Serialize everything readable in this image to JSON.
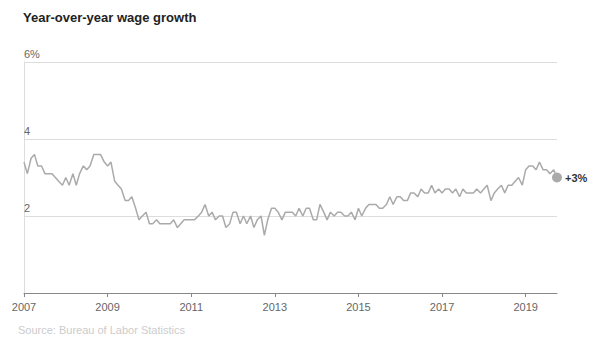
{
  "chart_data": {
    "type": "line",
    "title": "Year-over-year wage growth",
    "source": "Source: Bureau of Labor Statistics",
    "end_label": "+3%",
    "color": "#aaaaaa",
    "grid": true,
    "marker": "circle",
    "xlim": [
      2007,
      2019.75
    ],
    "xticks": [
      2007,
      2009,
      2011,
      2013,
      2015,
      2017,
      2019
    ],
    "ylim": [
      0,
      6
    ],
    "yticks": [
      2,
      4,
      {
        "value": 6,
        "label": "6%"
      }
    ],
    "x": [
      2007.0,
      2007.08,
      2007.17,
      2007.25,
      2007.33,
      2007.42,
      2007.5,
      2007.58,
      2007.67,
      2007.75,
      2007.83,
      2007.92,
      2008.0,
      2008.08,
      2008.17,
      2008.25,
      2008.33,
      2008.42,
      2008.5,
      2008.58,
      2008.67,
      2008.75,
      2008.83,
      2008.92,
      2009.0,
      2009.08,
      2009.17,
      2009.25,
      2009.33,
      2009.42,
      2009.5,
      2009.58,
      2009.67,
      2009.75,
      2009.83,
      2009.92,
      2010.0,
      2010.08,
      2010.17,
      2010.25,
      2010.33,
      2010.42,
      2010.5,
      2010.58,
      2010.67,
      2010.75,
      2010.83,
      2010.92,
      2011.0,
      2011.08,
      2011.17,
      2011.25,
      2011.33,
      2011.42,
      2011.5,
      2011.58,
      2011.67,
      2011.75,
      2011.83,
      2011.92,
      2012.0,
      2012.08,
      2012.17,
      2012.25,
      2012.33,
      2012.42,
      2012.5,
      2012.58,
      2012.67,
      2012.75,
      2012.83,
      2012.92,
      2013.0,
      2013.08,
      2013.17,
      2013.25,
      2013.33,
      2013.42,
      2013.5,
      2013.58,
      2013.67,
      2013.75,
      2013.83,
      2013.92,
      2014.0,
      2014.08,
      2014.17,
      2014.25,
      2014.33,
      2014.42,
      2014.5,
      2014.58,
      2014.67,
      2014.75,
      2014.83,
      2014.92,
      2015.0,
      2015.08,
      2015.17,
      2015.25,
      2015.33,
      2015.42,
      2015.5,
      2015.58,
      2015.67,
      2015.75,
      2015.83,
      2015.92,
      2016.0,
      2016.08,
      2016.17,
      2016.25,
      2016.33,
      2016.42,
      2016.5,
      2016.58,
      2016.67,
      2016.75,
      2016.83,
      2016.92,
      2017.0,
      2017.08,
      2017.17,
      2017.25,
      2017.33,
      2017.42,
      2017.5,
      2017.58,
      2017.67,
      2017.75,
      2017.83,
      2017.92,
      2018.0,
      2018.08,
      2018.17,
      2018.25,
      2018.33,
      2018.42,
      2018.5,
      2018.58,
      2018.67,
      2018.75,
      2018.83,
      2018.92,
      2019.0,
      2019.08,
      2019.17,
      2019.25,
      2019.33,
      2019.42,
      2019.5,
      2019.58,
      2019.67,
      2019.75
    ],
    "values": [
      3.4,
      3.1,
      3.5,
      3.6,
      3.3,
      3.3,
      3.1,
      3.1,
      3.1,
      3.0,
      2.9,
      2.8,
      3.0,
      2.8,
      3.1,
      2.8,
      3.1,
      3.3,
      3.2,
      3.3,
      3.6,
      3.6,
      3.6,
      3.4,
      3.3,
      3.4,
      2.9,
      2.8,
      2.7,
      2.4,
      2.4,
      2.5,
      2.2,
      1.9,
      2.0,
      2.1,
      1.8,
      1.8,
      1.9,
      1.8,
      1.8,
      1.8,
      1.8,
      1.9,
      1.7,
      1.8,
      1.9,
      1.9,
      1.9,
      1.9,
      2.0,
      2.1,
      2.3,
      2.0,
      2.1,
      1.9,
      2.0,
      2.0,
      1.7,
      1.8,
      2.1,
      2.1,
      1.8,
      2.0,
      1.8,
      2.0,
      1.7,
      1.9,
      2.0,
      1.5,
      1.9,
      2.2,
      2.2,
      2.1,
      1.9,
      2.1,
      2.1,
      2.1,
      2.0,
      2.2,
      2.0,
      2.2,
      2.2,
      1.9,
      1.9,
      2.3,
      2.1,
      1.9,
      2.1,
      2.0,
      2.1,
      2.1,
      2.0,
      2.0,
      2.1,
      1.9,
      2.2,
      2.0,
      2.2,
      2.3,
      2.3,
      2.3,
      2.2,
      2.2,
      2.3,
      2.5,
      2.3,
      2.5,
      2.5,
      2.4,
      2.4,
      2.6,
      2.6,
      2.5,
      2.7,
      2.6,
      2.6,
      2.8,
      2.6,
      2.7,
      2.6,
      2.7,
      2.7,
      2.6,
      2.7,
      2.5,
      2.7,
      2.6,
      2.6,
      2.6,
      2.7,
      2.6,
      2.7,
      2.8,
      2.4,
      2.6,
      2.7,
      2.8,
      2.6,
      2.8,
      2.8,
      2.9,
      3.0,
      2.8,
      3.2,
      3.3,
      3.3,
      3.2,
      3.4,
      3.2,
      3.2,
      3.1,
      3.2,
      3.0
    ]
  }
}
